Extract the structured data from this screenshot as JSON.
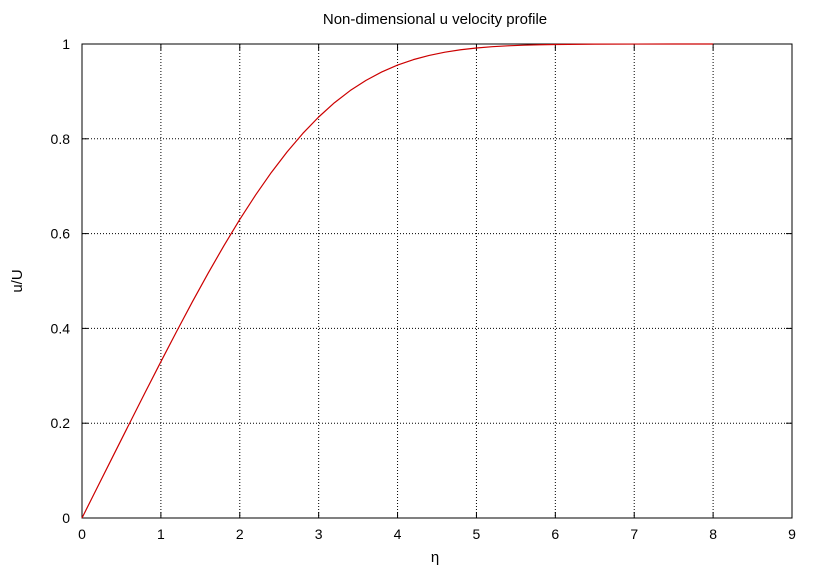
{
  "chart_data": {
    "type": "line",
    "title": "Non-dimensional u velocity profile",
    "xlabel": "η",
    "ylabel": "u/U",
    "xlim": [
      0,
      9
    ],
    "ylim": [
      0,
      1
    ],
    "x_ticks": [
      "0",
      "1",
      "2",
      "3",
      "4",
      "5",
      "6",
      "7",
      "8",
      "9"
    ],
    "y_ticks": [
      "0",
      "0.2",
      "0.4",
      "0.6",
      "0.8",
      "1"
    ],
    "grid": true,
    "series": [
      {
        "name": "",
        "color": "#cc0000",
        "x": [
          0,
          0.2,
          0.4,
          0.6,
          0.8,
          1.0,
          1.2,
          1.4,
          1.6,
          1.8,
          2.0,
          2.2,
          2.4,
          2.6,
          2.8,
          3.0,
          3.2,
          3.4,
          3.6,
          3.8,
          4.0,
          4.2,
          4.4,
          4.6,
          4.8,
          5.0,
          5.2,
          5.4,
          5.6,
          5.8,
          6.0,
          6.5,
          7.0,
          7.5,
          8.0
        ],
        "y": [
          0,
          0.0664,
          0.1328,
          0.1989,
          0.2647,
          0.3298,
          0.3938,
          0.4563,
          0.5168,
          0.5748,
          0.6298,
          0.6813,
          0.729,
          0.7725,
          0.8115,
          0.846,
          0.8761,
          0.9018,
          0.9233,
          0.9411,
          0.9555,
          0.967,
          0.9759,
          0.9827,
          0.9878,
          0.9916,
          0.9943,
          0.9962,
          0.9975,
          0.9984,
          0.999,
          0.9997,
          0.9999,
          1.0,
          1.0
        ]
      }
    ]
  }
}
